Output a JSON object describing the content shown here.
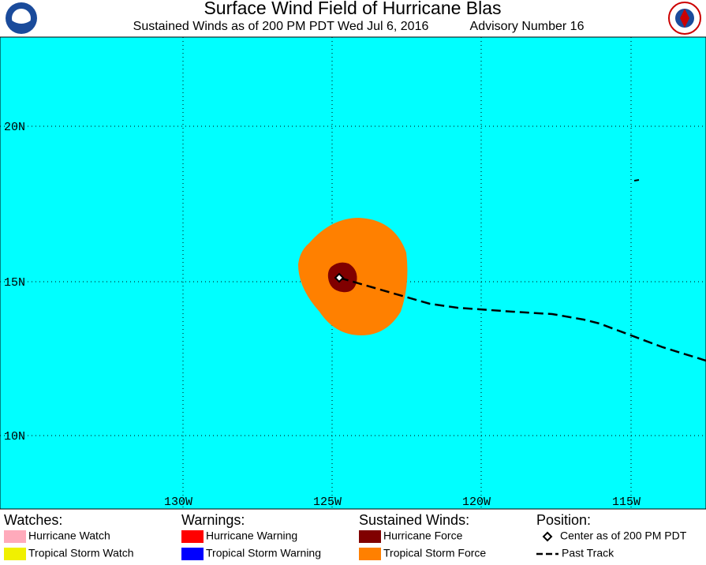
{
  "header": {
    "title": "Surface Wind Field of Hurricane Blas",
    "subtitle": "Sustained Winds as of 200 PM PDT Wed Jul 6, 2016",
    "advisory": "Advisory Number 16"
  },
  "map": {
    "latitude_labels": [
      "20N",
      "15N",
      "10N"
    ],
    "longitude_labels": [
      "130W",
      "125W",
      "120W",
      "115W"
    ]
  },
  "legend": {
    "groups": [
      {
        "title": "Watches:",
        "items": [
          "Hurricane Watch",
          "Tropical Storm Watch"
        ]
      },
      {
        "title": "Warnings:",
        "items": [
          "Hurricane Warning",
          "Tropical Storm Warning"
        ]
      },
      {
        "title": "Sustained Winds:",
        "items": [
          "Hurricane Force",
          "Tropical Storm Force"
        ]
      },
      {
        "title": "Position:",
        "items": [
          "Center as of 200 PM PDT",
          "Past Track"
        ]
      }
    ]
  }
}
